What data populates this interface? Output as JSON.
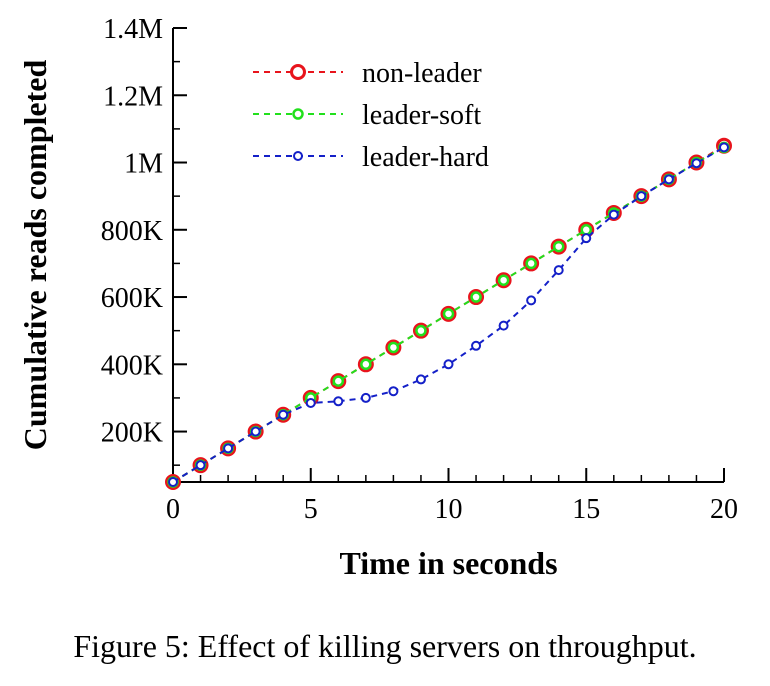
{
  "caption": "Figure 5: Effect of killing servers on throughput.",
  "chart_data": {
    "type": "line",
    "xlabel": "Time in seconds",
    "ylabel": "Cumulative reads completed",
    "xlim": [
      0,
      20
    ],
    "ylim": [
      50000,
      1400000
    ],
    "x_ticks": [
      0,
      5,
      10,
      15,
      20
    ],
    "x_tick_labels": [
      "0",
      "5",
      "10",
      "15",
      "20"
    ],
    "y_ticks": [
      200000,
      400000,
      600000,
      800000,
      1000000,
      1200000,
      1400000
    ],
    "y_tick_labels": [
      "200K",
      "400K",
      "600K",
      "800K",
      "1M",
      "1.2M",
      "1.4M"
    ],
    "grid": false,
    "legend_position": "top-left",
    "x": [
      0,
      1,
      2,
      3,
      4,
      5,
      6,
      7,
      8,
      9,
      10,
      11,
      12,
      13,
      14,
      15,
      16,
      17,
      18,
      19,
      20
    ],
    "series": [
      {
        "name": "non-leader",
        "color": "#e8141c",
        "marker": "large-circle",
        "values": [
          50000,
          100000,
          150000,
          200000,
          250000,
          300000,
          350000,
          400000,
          450000,
          500000,
          550000,
          600000,
          650000,
          700000,
          750000,
          800000,
          850000,
          900000,
          950000,
          1000000,
          1050000
        ]
      },
      {
        "name": "leader-soft",
        "color": "#22e01c",
        "marker": "medium-circle",
        "values": [
          50000,
          100000,
          150000,
          200000,
          250000,
          300000,
          350000,
          400000,
          450000,
          500000,
          550000,
          600000,
          650000,
          700000,
          750000,
          800000,
          850000,
          900000,
          950000,
          1000000,
          1045000
        ]
      },
      {
        "name": "leader-hard",
        "color": "#1420c8",
        "marker": "small-circle",
        "values": [
          50000,
          100000,
          150000,
          200000,
          250000,
          285000,
          290000,
          300000,
          320000,
          355000,
          400000,
          455000,
          515000,
          590000,
          680000,
          775000,
          845000,
          900000,
          950000,
          998000,
          1045000
        ]
      }
    ]
  }
}
